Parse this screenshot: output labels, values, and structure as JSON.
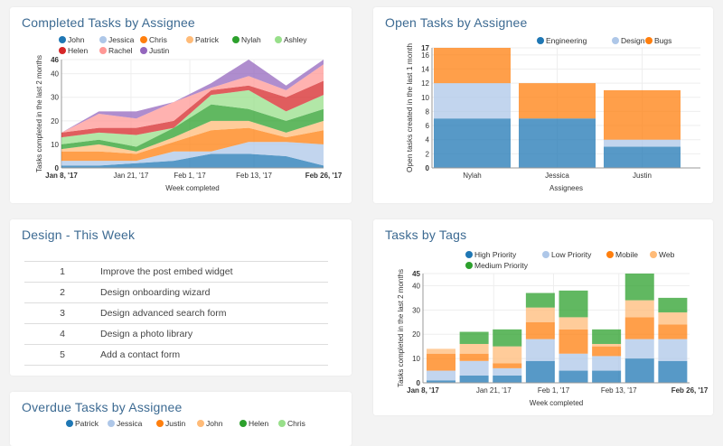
{
  "colors": {
    "blue": "#1f77b4",
    "lightblue": "#aec7e8",
    "orange": "#ff7f0e",
    "lightorange": "#ffbb78",
    "green": "#2ca02c",
    "lightgreen": "#98df8a",
    "red": "#d62728",
    "pink": "#ff9896",
    "purple": "#9467bd"
  },
  "design_week": {
    "title": "Design - This Week",
    "rows": [
      {
        "n": "1",
        "task": "Improve the post embed widget"
      },
      {
        "n": "2",
        "task": "Design onboarding wizard"
      },
      {
        "n": "3",
        "task": "Design advanced search form"
      },
      {
        "n": "4",
        "task": "Design a photo library"
      },
      {
        "n": "5",
        "task": "Add a contact form"
      }
    ]
  },
  "chart_data": [
    {
      "id": "completed",
      "type": "area",
      "title": "Completed Tasks by Assignee",
      "xlabel": "Week completed",
      "ylabel": "Tasks completed in the last 2 months",
      "ylim": [
        0,
        46
      ],
      "yticks": [
        0,
        10,
        20,
        30,
        40,
        46
      ],
      "x": [
        "2017-01-08",
        "2017-01-15",
        "2017-01-22",
        "2017-01-29",
        "2017-02-05",
        "2017-02-12",
        "2017-02-19",
        "2017-02-26"
      ],
      "xticks": [
        {
          "date": "2017-01-08",
          "label": "Jan 8, '17",
          "bold": true
        },
        {
          "date": "2017-01-21",
          "label": "Jan 21, '17"
        },
        {
          "date": "2017-02-01",
          "label": "Feb 1, '17"
        },
        {
          "date": "2017-02-13",
          "label": "Feb 13, '17"
        },
        {
          "date": "2017-02-26",
          "label": "Feb 26, '17",
          "bold": true
        }
      ],
      "legend": "top",
      "stacked": true,
      "grid": true,
      "series": [
        {
          "name": "John",
          "color": "#1f77b4",
          "values": [
            1,
            1,
            2,
            3,
            6,
            6,
            5,
            1
          ]
        },
        {
          "name": "Jessica",
          "color": "#aec7e8",
          "values": [
            2,
            2,
            1,
            4,
            1,
            5,
            6,
            9
          ]
        },
        {
          "name": "Chris",
          "color": "#ff7f0e",
          "values": [
            4,
            4,
            3,
            4,
            9,
            6,
            2,
            6
          ]
        },
        {
          "name": "Patrick",
          "color": "#ffbb78",
          "values": [
            1,
            3,
            1,
            2,
            4,
            3,
            2,
            4
          ]
        },
        {
          "name": "Nylah",
          "color": "#2ca02c",
          "values": [
            2,
            2,
            2,
            4,
            7,
            5,
            5,
            5
          ]
        },
        {
          "name": "Ashley",
          "color": "#98df8a",
          "values": [
            3,
            3,
            5,
            0,
            4,
            8,
            4,
            6
          ]
        },
        {
          "name": "Helen",
          "color": "#d62728",
          "values": [
            2,
            2,
            3,
            3,
            2,
            2,
            6,
            6
          ]
        },
        {
          "name": "Rachel",
          "color": "#ff9896",
          "values": [
            0,
            6,
            4,
            8,
            1,
            4,
            3,
            7
          ]
        },
        {
          "name": "Justin",
          "color": "#9467bd",
          "values": [
            0,
            1,
            3,
            0,
            2,
            7,
            2,
            2
          ]
        }
      ]
    },
    {
      "id": "open",
      "type": "bar",
      "title": "Open Tasks by Assignee",
      "xlabel": "Assignees",
      "ylabel": "Open tasks created in the last 1 month",
      "ylim": [
        0,
        17
      ],
      "yticks": [
        0,
        2,
        4,
        6,
        8,
        10,
        12,
        14,
        16,
        17
      ],
      "categories": [
        "Nylah",
        "Jessica",
        "Justin"
      ],
      "legend": "top-right",
      "stacked": true,
      "grid": true,
      "series": [
        {
          "name": "Engineering",
          "color": "#1f77b4",
          "values": [
            7,
            7,
            3
          ]
        },
        {
          "name": "Design",
          "color": "#aec7e8",
          "values": [
            5,
            0,
            1
          ]
        },
        {
          "name": "Bugs",
          "color": "#ff7f0e",
          "values": [
            5,
            5,
            7
          ]
        }
      ]
    },
    {
      "id": "tags",
      "type": "bar",
      "title": "Tasks by Tags",
      "xlabel": "Week completed",
      "ylabel": "Tasks completed in the last 2 months",
      "ylim": [
        0,
        45
      ],
      "yticks": [
        0,
        10,
        20,
        30,
        40,
        45
      ],
      "x": [
        "2017-01-08",
        "2017-01-15",
        "2017-01-22",
        "2017-01-29",
        "2017-02-05",
        "2017-02-12",
        "2017-02-19",
        "2017-02-26"
      ],
      "xticks": [
        {
          "date": "2017-01-08",
          "label": "Jan 8, '17",
          "bold": true
        },
        {
          "date": "2017-01-21",
          "label": "Jan 21, '17"
        },
        {
          "date": "2017-02-01",
          "label": "Feb 1, '17"
        },
        {
          "date": "2017-02-13",
          "label": "Feb 13, '17"
        },
        {
          "date": "2017-02-26",
          "label": "Feb 26, '17",
          "bold": true
        }
      ],
      "legend": "top",
      "stacked": true,
      "grid": true,
      "series": [
        {
          "name": "High Priority",
          "color": "#1f77b4",
          "values": [
            1,
            3,
            3,
            9,
            5,
            5,
            10,
            9
          ]
        },
        {
          "name": "Low Priority",
          "color": "#aec7e8",
          "values": [
            4,
            6,
            3,
            9,
            7,
            6,
            8,
            9
          ]
        },
        {
          "name": "Mobile",
          "color": "#ff7f0e",
          "values": [
            7,
            3,
            2,
            7,
            10,
            4,
            9,
            6
          ]
        },
        {
          "name": "Web",
          "color": "#ffbb78",
          "values": [
            2,
            4,
            7,
            6,
            5,
            1,
            7,
            5
          ]
        },
        {
          "name": "Medium Priority",
          "color": "#2ca02c",
          "values": [
            0,
            5,
            7,
            6,
            11,
            6,
            11,
            6
          ]
        }
      ]
    },
    {
      "id": "overdue",
      "type": "bar",
      "title": "Overdue Tasks by Assignee",
      "legend": "top",
      "series": [
        {
          "name": "Patrick",
          "color": "#1f77b4"
        },
        {
          "name": "Jessica",
          "color": "#aec7e8"
        },
        {
          "name": "Justin",
          "color": "#ff7f0e"
        },
        {
          "name": "John",
          "color": "#ffbb78"
        },
        {
          "name": "Helen",
          "color": "#2ca02c"
        },
        {
          "name": "Chris",
          "color": "#98df8a"
        }
      ]
    }
  ]
}
